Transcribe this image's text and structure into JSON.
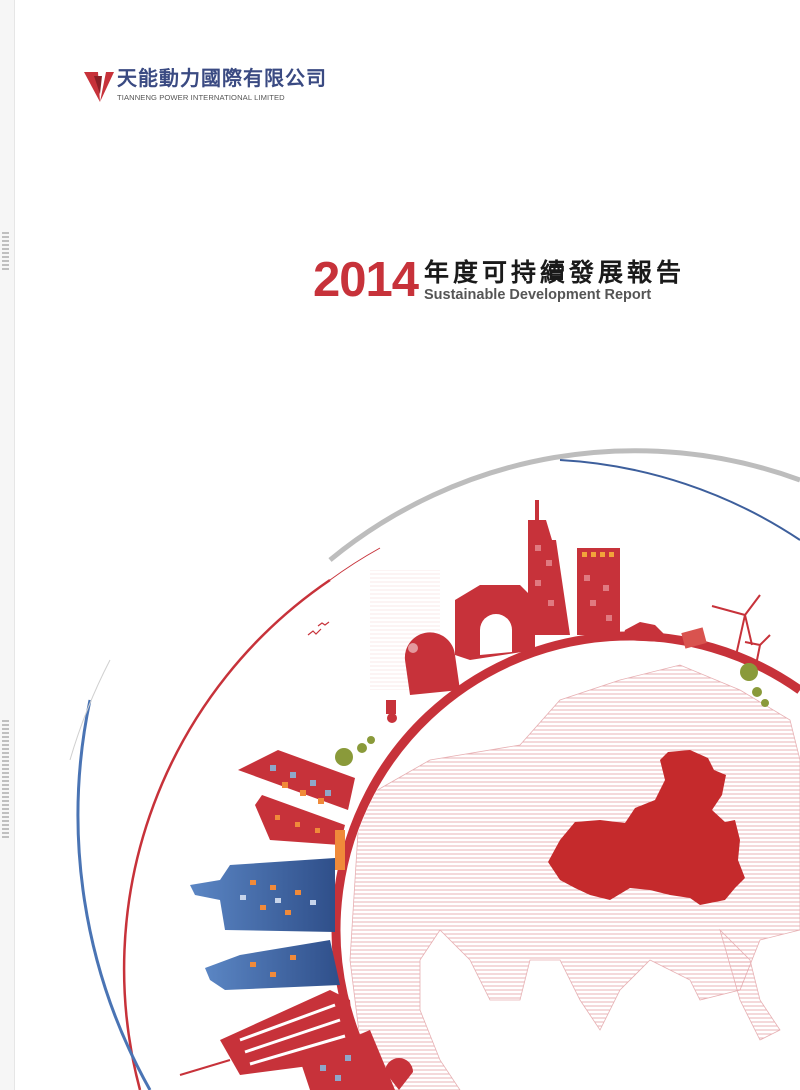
{
  "logo": {
    "name_cn": "天能動力國際有限公司",
    "name_en": "TIANNENG POWER INTERNATIONAL LIMITED",
    "brand_color": "#c7323a",
    "accent_color": "#3a4a82"
  },
  "title": {
    "year": "2014",
    "name_cn": "年度可持續發展報告",
    "name_en": "Sustainable Development Report"
  },
  "colors": {
    "red": "#c7323a",
    "blue": "#3d5f9c",
    "gray": "#b8b8b8",
    "tree": "#8a9a3a"
  }
}
